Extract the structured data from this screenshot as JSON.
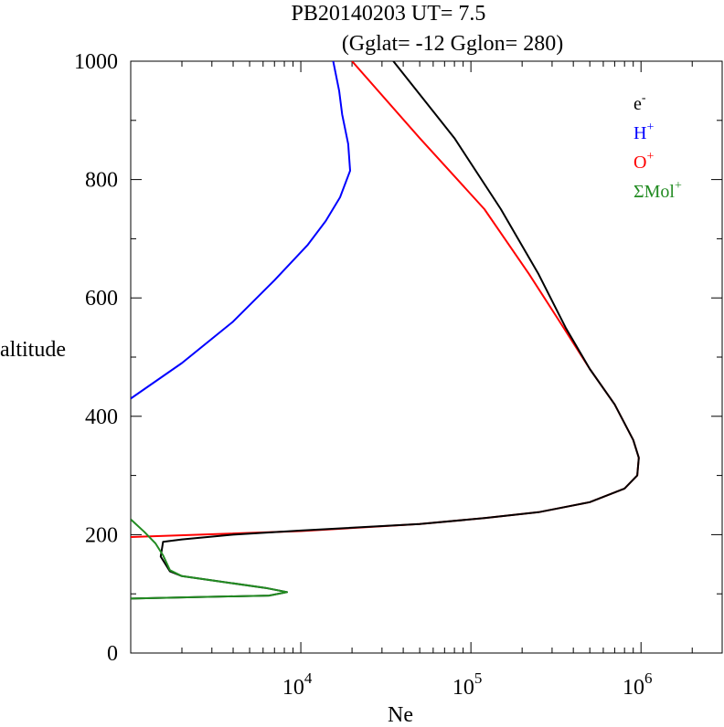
{
  "chart_data": {
    "type": "line",
    "title": "PB20140203   UT=  7.5",
    "subtitle": "(Gglat= -12   Gglon=  280)",
    "xlabel": "Ne",
    "ylabel": "altitude",
    "xscale": "log",
    "xlim": [
      1000,
      3000000
    ],
    "ylim": [
      0,
      1000
    ],
    "x_ticks": [
      {
        "base": "10",
        "exp": "4",
        "value": 10000
      },
      {
        "base": "10",
        "exp": "5",
        "value": 100000
      },
      {
        "base": "10",
        "exp": "6",
        "value": 1000000
      }
    ],
    "y_ticks": [
      "0",
      "200",
      "400",
      "600",
      "800",
      "1000"
    ],
    "y_tick_values": [
      0,
      200,
      400,
      600,
      800,
      1000
    ],
    "legend_position": "top-right",
    "legend": [
      {
        "base": "e",
        "sup": "-",
        "color": "#000000"
      },
      {
        "base": "H",
        "sup": "+",
        "color": "#0000ff"
      },
      {
        "base": "O",
        "sup": "+",
        "color": "#ff0000"
      },
      {
        "base": "ΣMol",
        "sup": "+",
        "color": "#228b22"
      }
    ],
    "series": [
      {
        "key": "o_plus",
        "color": "#ff0000",
        "points": [
          [
            1000,
            196
          ],
          [
            10000,
            206
          ],
          [
            50000,
            218
          ],
          [
            120000,
            228
          ],
          [
            250000,
            238
          ],
          [
            500000,
            255
          ],
          [
            800000,
            278
          ],
          [
            950000,
            300
          ],
          [
            970000,
            330
          ],
          [
            900000,
            360
          ],
          [
            700000,
            420
          ],
          [
            500000,
            480
          ],
          [
            350000,
            550
          ],
          [
            220000,
            640
          ],
          [
            120000,
            750
          ],
          [
            50000,
            870
          ],
          [
            20000,
            1000
          ]
        ]
      },
      {
        "key": "e_minus",
        "color": "#000000",
        "points": [
          [
            1000,
            92
          ],
          [
            2000,
            94
          ],
          [
            6500,
            97
          ],
          [
            8300,
            103
          ],
          [
            6200,
            110
          ],
          [
            2000,
            130
          ],
          [
            1700,
            138
          ],
          [
            1500,
            163
          ],
          [
            1550,
            188
          ],
          [
            2000,
            192
          ],
          [
            4000,
            200
          ],
          [
            10000,
            207
          ],
          [
            50000,
            218
          ],
          [
            120000,
            228
          ],
          [
            250000,
            238
          ],
          [
            500000,
            255
          ],
          [
            800000,
            278
          ],
          [
            950000,
            300
          ],
          [
            970000,
            330
          ],
          [
            900000,
            360
          ],
          [
            700000,
            420
          ],
          [
            500000,
            480
          ],
          [
            360000,
            550
          ],
          [
            250000,
            640
          ],
          [
            150000,
            750
          ],
          [
            80000,
            870
          ],
          [
            35000,
            1000
          ]
        ]
      },
      {
        "key": "h_plus",
        "color": "#0000ff",
        "points": [
          [
            1000,
            430
          ],
          [
            2000,
            490
          ],
          [
            4000,
            560
          ],
          [
            7000,
            630
          ],
          [
            11000,
            690
          ],
          [
            14000,
            730
          ],
          [
            17000,
            770
          ],
          [
            19500,
            815
          ],
          [
            19000,
            860
          ],
          [
            17500,
            910
          ],
          [
            16800,
            950
          ],
          [
            15500,
            1000
          ]
        ]
      },
      {
        "key": "mol_plus",
        "color": "#228b22",
        "points": [
          [
            1000,
            226
          ],
          [
            1200,
            205
          ],
          [
            1400,
            185
          ],
          [
            1550,
            165
          ],
          [
            1700,
            140
          ],
          [
            2000,
            130
          ],
          [
            6200,
            110
          ],
          [
            8300,
            103
          ],
          [
            6500,
            97
          ],
          [
            2000,
            94
          ],
          [
            1000,
            92
          ]
        ]
      }
    ]
  }
}
